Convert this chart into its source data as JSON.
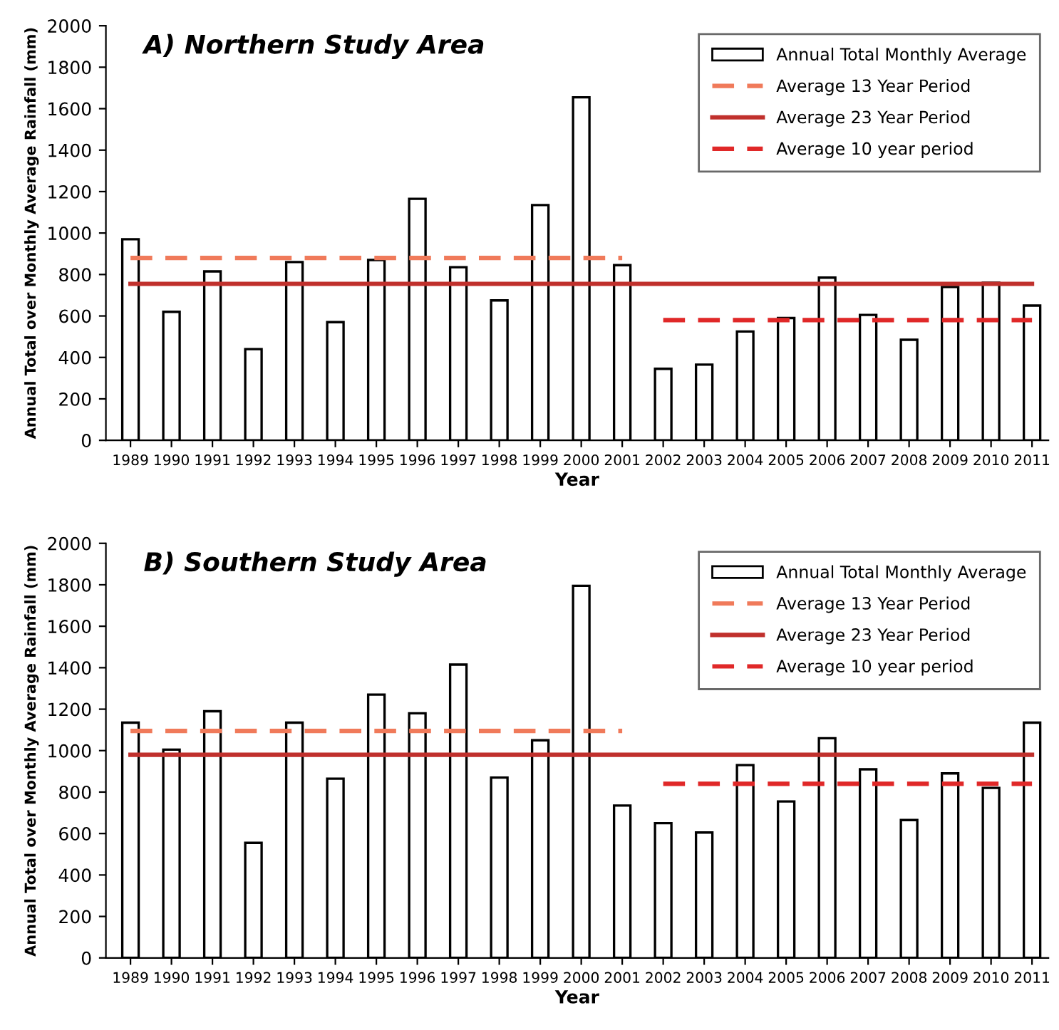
{
  "chart_data": [
    {
      "type": "bar",
      "title": "A) Northern Study Area",
      "xlabel": "Year",
      "ylabel": "Annual Total over Monthly Average Rainfall (mm)",
      "categories": [
        "1989",
        "1990",
        "1991",
        "1992",
        "1993",
        "1994",
        "1995",
        "1996",
        "1997",
        "1998",
        "1999",
        "2000",
        "2001",
        "2002",
        "2003",
        "2004",
        "2005",
        "2006",
        "2007",
        "2008",
        "2009",
        "2010",
        "2011"
      ],
      "series": [
        {
          "name": "Annual Total Monthly Average",
          "color": "#ffffff",
          "values": [
            970,
            620,
            815,
            440,
            860,
            570,
            870,
            1165,
            835,
            675,
            1135,
            1655,
            845,
            345,
            365,
            525,
            590,
            785,
            605,
            485,
            740,
            760,
            650
          ]
        },
        {
          "name": "Average 13 Year Period",
          "type": "line",
          "color": "#f07a5a",
          "line_style": "dashed",
          "values": [
            880,
            880,
            880,
            880,
            880,
            880,
            880,
            880,
            880,
            880,
            880,
            880,
            880,
            null,
            null,
            null,
            null,
            null,
            null,
            null,
            null,
            null,
            null
          ]
        },
        {
          "name": "Average 23 Year Period",
          "type": "line",
          "color": "#c0302c",
          "line_style": "solid",
          "values": [
            755,
            755,
            755,
            755,
            755,
            755,
            755,
            755,
            755,
            755,
            755,
            755,
            755,
            755,
            755,
            755,
            755,
            755,
            755,
            755,
            755,
            755,
            755
          ]
        },
        {
          "name": "Average 10 year period",
          "type": "line",
          "color": "#e02828",
          "line_style": "dashed",
          "values": [
            null,
            null,
            null,
            null,
            null,
            null,
            null,
            null,
            null,
            null,
            null,
            null,
            null,
            580,
            580,
            580,
            580,
            580,
            580,
            580,
            580,
            580,
            580
          ]
        }
      ],
      "ylim": [
        0,
        2000
      ],
      "yticks": [
        0,
        200,
        400,
        600,
        800,
        1000,
        1200,
        1400,
        1600,
        1800,
        2000
      ],
      "grid": false,
      "legend": "top right"
    },
    {
      "type": "bar",
      "title": "B) Southern Study Area",
      "xlabel": "Year",
      "ylabel": "Annual Total over Monthly Average Rainfall (mm)",
      "categories": [
        "1989",
        "1990",
        "1991",
        "1992",
        "1993",
        "1994",
        "1995",
        "1996",
        "1997",
        "1998",
        "1999",
        "2000",
        "2001",
        "2002",
        "2003",
        "2004",
        "2005",
        "2006",
        "2007",
        "2008",
        "2009",
        "2010",
        "2011"
      ],
      "series": [
        {
          "name": "Annual Total Monthly Average",
          "color": "#ffffff",
          "values": [
            1135,
            1005,
            1190,
            555,
            1135,
            865,
            1270,
            1180,
            1415,
            870,
            1050,
            1795,
            735,
            650,
            605,
            930,
            755,
            1060,
            910,
            665,
            890,
            820,
            1135
          ]
        },
        {
          "name": "Average 13 Year Period",
          "type": "line",
          "color": "#f07a5a",
          "line_style": "dashed",
          "values": [
            1095,
            1095,
            1095,
            1095,
            1095,
            1095,
            1095,
            1095,
            1095,
            1095,
            1095,
            1095,
            1095,
            null,
            null,
            null,
            null,
            null,
            null,
            null,
            null,
            null,
            null
          ]
        },
        {
          "name": "Average 23 Year Period",
          "type": "line",
          "color": "#c0302c",
          "line_style": "solid",
          "values": [
            980,
            980,
            980,
            980,
            980,
            980,
            980,
            980,
            980,
            980,
            980,
            980,
            980,
            980,
            980,
            980,
            980,
            980,
            980,
            980,
            980,
            980,
            980
          ]
        },
        {
          "name": "Average 10 year period",
          "type": "line",
          "color": "#e02828",
          "line_style": "dashed",
          "values": [
            null,
            null,
            null,
            null,
            null,
            null,
            null,
            null,
            null,
            null,
            null,
            null,
            null,
            840,
            840,
            840,
            840,
            840,
            840,
            840,
            840,
            840,
            840
          ]
        }
      ],
      "ylim": [
        0,
        2000
      ],
      "yticks": [
        0,
        200,
        400,
        600,
        800,
        1000,
        1200,
        1400,
        1600,
        1800,
        2000
      ],
      "grid": false,
      "legend": "top right"
    }
  ]
}
